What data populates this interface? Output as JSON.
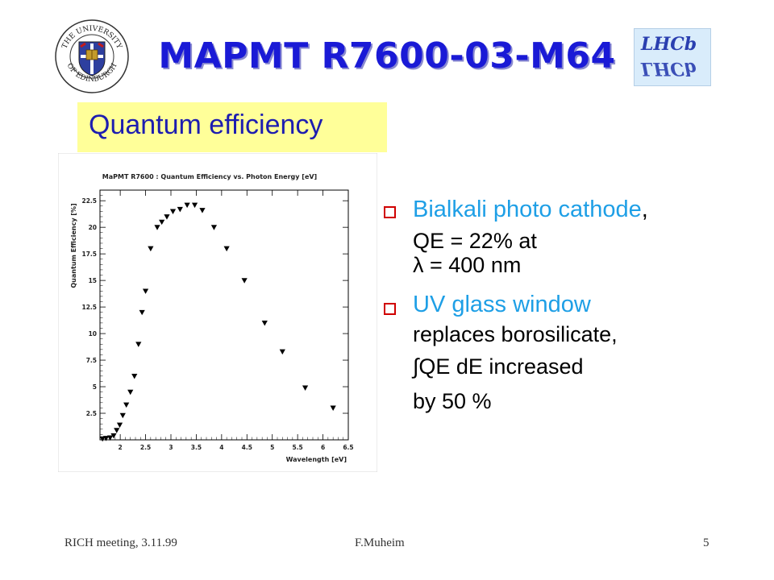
{
  "slide": {
    "title": "MAPMT R7600-03-M64",
    "subtitle": "Quantum efficiency",
    "logos": {
      "university_text": "THE UNIVERSITY OF EDINBURGH",
      "experiment_text": "LHCb"
    },
    "bullets": [
      {
        "head": "Bialkali photo cathode",
        "head_suffix": ",",
        "lines": [
          "QE = 22% at",
          "λ = 400 nm"
        ]
      },
      {
        "head": "UV glass window",
        "head_suffix": "",
        "lines": [
          "replaces borosilicate,",
          "∫QE dE  increased",
          "by  50 %"
        ]
      }
    ],
    "footer": {
      "left": "RICH meeting, 3.11.99",
      "center": "F.Muheim",
      "right": "5"
    }
  },
  "chart_data": {
    "type": "scatter",
    "title": "MaPMT R7600 : Quantum Efficiency vs. Photon Energy [eV]",
    "xlabel": "Wavelength [eV]",
    "ylabel": "Quantum Efficiency [%]",
    "xlim": [
      1.6,
      6.5
    ],
    "ylim": [
      0,
      23.5
    ],
    "xticks": [
      2,
      2.5,
      3,
      3.5,
      4,
      4.5,
      5,
      5.5,
      6,
      6.5
    ],
    "yticks": [
      2.5,
      5,
      7.5,
      10,
      12.5,
      15,
      17.5,
      20,
      22.5
    ],
    "marker": "down-triangle",
    "points": [
      [
        1.65,
        0.1
      ],
      [
        1.72,
        0.15
      ],
      [
        1.8,
        0.2
      ],
      [
        1.87,
        0.4
      ],
      [
        1.93,
        0.9
      ],
      [
        1.99,
        1.4
      ],
      [
        2.05,
        2.3
      ],
      [
        2.12,
        3.3
      ],
      [
        2.2,
        4.5
      ],
      [
        2.28,
        6.0
      ],
      [
        2.36,
        9.0
      ],
      [
        2.43,
        12.0
      ],
      [
        2.5,
        14.0
      ],
      [
        2.6,
        18.0
      ],
      [
        2.73,
        20.0
      ],
      [
        2.82,
        20.5
      ],
      [
        2.92,
        21.0
      ],
      [
        3.04,
        21.5
      ],
      [
        3.18,
        21.7
      ],
      [
        3.32,
        22.1
      ],
      [
        3.47,
        22.1
      ],
      [
        3.62,
        21.6
      ],
      [
        3.85,
        20.0
      ],
      [
        4.1,
        18.0
      ],
      [
        4.45,
        15.0
      ],
      [
        4.85,
        11.0
      ],
      [
        5.2,
        8.3
      ],
      [
        5.65,
        4.9
      ],
      [
        6.2,
        3.0
      ]
    ]
  }
}
